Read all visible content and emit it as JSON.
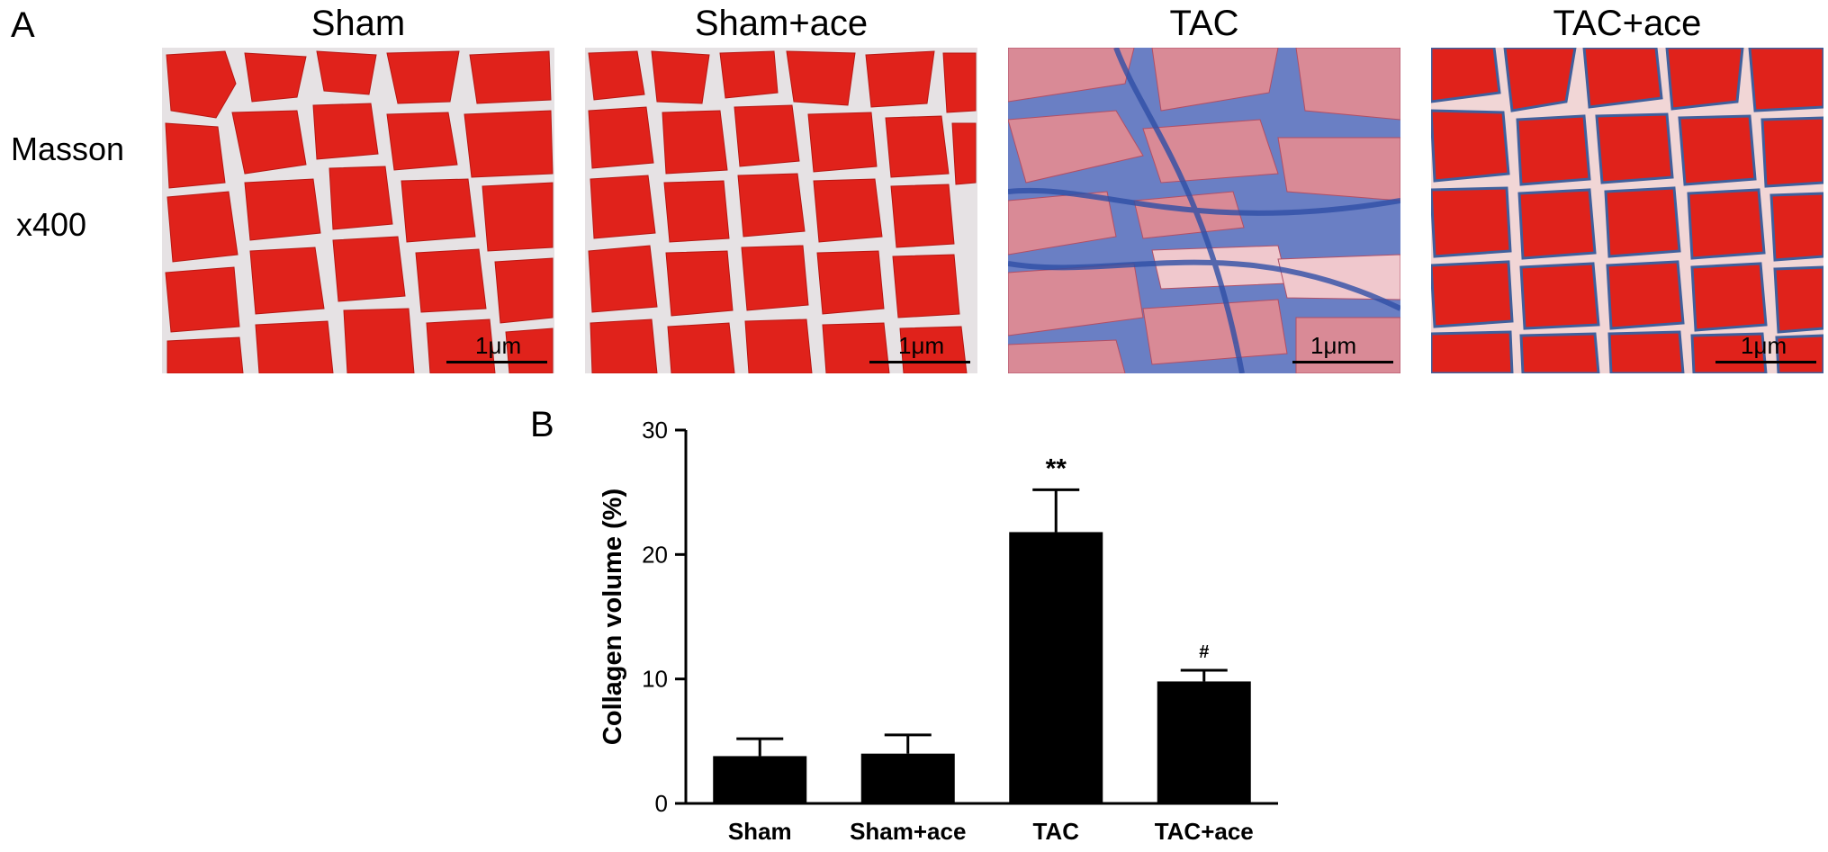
{
  "panel_a": {
    "letter": "A",
    "stain_label": "Masson",
    "magnification": "x400",
    "images": [
      {
        "title": "Sham",
        "scale": "1μm",
        "stain_pattern": "red-myocytes-white-gaps"
      },
      {
        "title": "Sham+ace",
        "scale": "1μm",
        "stain_pattern": "red-myocytes-white-gaps"
      },
      {
        "title": "TAC",
        "scale": "1μm",
        "stain_pattern": "pink-myocytes-blue-fibrosis"
      },
      {
        "title": "TAC+ace",
        "scale": "1μm",
        "stain_pattern": "red-myocytes-blue-network"
      }
    ],
    "colors": {
      "myocyte": "#e0221b",
      "interstitium": "#e6e2e4",
      "collagen": "#3d5fb3"
    }
  },
  "panel_b": {
    "letter": "B"
  },
  "chart_data": {
    "type": "bar",
    "categories": [
      "Sham",
      "Sham+ace",
      "TAC",
      "TAC+ace"
    ],
    "values": [
      3.8,
      4.0,
      21.8,
      9.8
    ],
    "errors": [
      1.4,
      1.5,
      3.4,
      0.9
    ],
    "annotations": [
      "",
      "",
      "**",
      "#"
    ],
    "title": "",
    "xlabel": "",
    "ylabel": "Collagen volume (%)",
    "ylim": [
      0,
      30
    ],
    "yticks": [
      0,
      10,
      20,
      30
    ],
    "bar_color": "#000000",
    "grid": false,
    "legend": "none"
  }
}
